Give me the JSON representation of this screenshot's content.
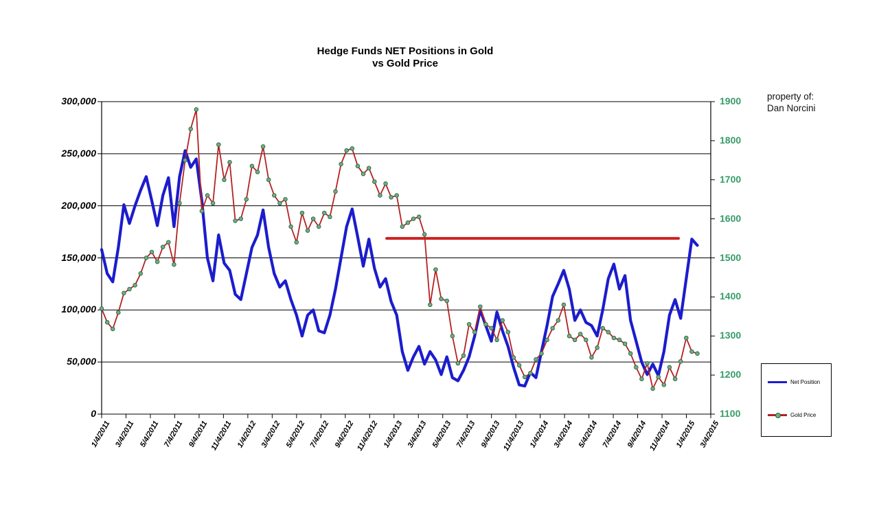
{
  "title": {
    "line1": "Hedge Funds NET Positions in Gold",
    "line2": "vs Gold Price"
  },
  "property_note": {
    "line1": "property of:",
    "line2": "Dan Norcini"
  },
  "legend": {
    "items": [
      {
        "label": "Net Position",
        "color": "#1c1ccd"
      },
      {
        "label": "Gold Price",
        "color": "#b42121",
        "marker_color": "#6fae83"
      }
    ]
  },
  "chart_data": {
    "type": "line",
    "title": "Hedge Funds NET Positions in Gold vs Gold Price",
    "grid": true,
    "legend_position": "outside-bottom-right",
    "x_tick_labels": [
      "1/4/2011",
      "3/4/2011",
      "5/4/2011",
      "7/4/2011",
      "9/4/2011",
      "11/4/2011",
      "1/4/2012",
      "3/4/2012",
      "5/4/2012",
      "7/4/2012",
      "9/4/2012",
      "11/4/2012",
      "1/4/2013",
      "3/4/2013",
      "5/4/2013",
      "7/4/2013",
      "9/4/2013",
      "11/4/2013",
      "1/4/2014",
      "3/4/2014",
      "5/4/2014",
      "7/4/2014",
      "9/4/2014",
      "11/4/2014",
      "1/4/2015",
      "3/4/2015"
    ],
    "left_axis": {
      "min": 0,
      "max": 300000,
      "step": 50000,
      "labels": [
        "0",
        "50,000",
        "100,000",
        "150,000",
        "200,000",
        "250,000",
        "300,000"
      ]
    },
    "right_axis": {
      "min": 1100,
      "max": 1900,
      "step": 100,
      "color": "#369b69",
      "labels": [
        "1100",
        "1200",
        "1300",
        "1400",
        "1500",
        "1600",
        "1700",
        "1800",
        "1900"
      ]
    },
    "series_x_span_frac": 0.978,
    "series": [
      {
        "name": "Net Position",
        "axis": "left",
        "color": "#1c1ccd",
        "width": 4.2,
        "values": [
          158000,
          135000,
          127000,
          160000,
          201000,
          183000,
          200000,
          215000,
          228000,
          205000,
          181000,
          210000,
          227000,
          180000,
          228000,
          253000,
          237000,
          245000,
          205000,
          150000,
          128000,
          172000,
          145000,
          138000,
          115000,
          110000,
          135000,
          160000,
          172000,
          196000,
          160000,
          135000,
          122000,
          128000,
          110000,
          95000,
          75000,
          95000,
          100000,
          80000,
          78000,
          95000,
          120000,
          150000,
          180000,
          197000,
          170000,
          142000,
          168000,
          140000,
          122000,
          130000,
          108000,
          95000,
          60000,
          42000,
          55000,
          65000,
          48000,
          60000,
          52000,
          38000,
          55000,
          35000,
          32000,
          42000,
          55000,
          75000,
          100000,
          85000,
          70000,
          98000,
          80000,
          65000,
          45000,
          28000,
          27000,
          40000,
          35000,
          60000,
          85000,
          113000,
          125000,
          138000,
          120000,
          90000,
          100000,
          88000,
          85000,
          75000,
          100000,
          130000,
          144000,
          120000,
          133000,
          90000,
          70000,
          50000,
          38000,
          48000,
          37000,
          60000,
          95000,
          110000,
          92000,
          130000,
          168000,
          162000
        ]
      },
      {
        "name": "Gold Price",
        "axis": "right",
        "color": "#b42121",
        "width": 1.8,
        "marker": {
          "shape": "circle",
          "radius": 2.8,
          "fill": "#6fae83",
          "stroke": "#2f6344",
          "stroke_width": 0.9
        },
        "values": [
          1370,
          1335,
          1318,
          1360,
          1410,
          1420,
          1430,
          1460,
          1500,
          1515,
          1490,
          1528,
          1540,
          1483,
          1640,
          1750,
          1830,
          1880,
          1620,
          1660,
          1640,
          1790,
          1700,
          1745,
          1595,
          1600,
          1650,
          1735,
          1720,
          1785,
          1700,
          1660,
          1640,
          1650,
          1580,
          1540,
          1615,
          1570,
          1600,
          1580,
          1615,
          1605,
          1670,
          1740,
          1775,
          1780,
          1735,
          1715,
          1730,
          1695,
          1660,
          1690,
          1655,
          1660,
          1580,
          1590,
          1600,
          1605,
          1560,
          1380,
          1470,
          1395,
          1390,
          1300,
          1230,
          1250,
          1330,
          1310,
          1375,
          1330,
          1320,
          1290,
          1340,
          1310,
          1245,
          1225,
          1195,
          1205,
          1240,
          1255,
          1290,
          1320,
          1340,
          1380,
          1300,
          1290,
          1305,
          1290,
          1245,
          1270,
          1320,
          1310,
          1295,
          1290,
          1280,
          1255,
          1220,
          1190,
          1230,
          1165,
          1195,
          1175,
          1220,
          1190,
          1235,
          1295,
          1260,
          1255
        ]
      }
    ],
    "annotation_line": {
      "value": 1550,
      "axis": "right",
      "color": "#cf2020",
      "width": 4,
      "x_start_frac": 0.468,
      "x_end_frac": 0.947
    }
  }
}
